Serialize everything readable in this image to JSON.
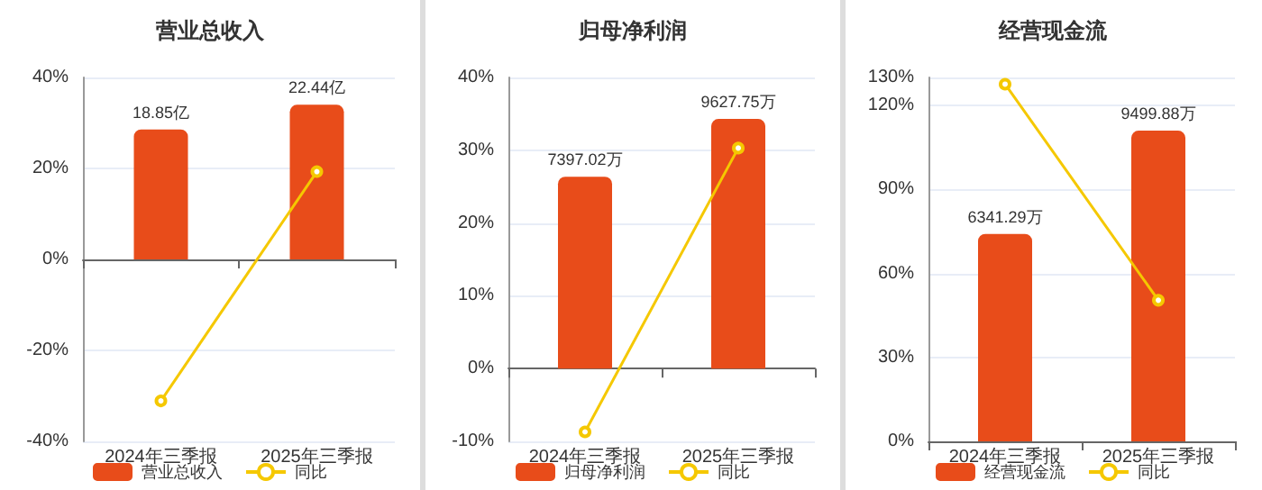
{
  "chart_data": [
    {
      "type": "bar",
      "title": "营业总收入",
      "categories": [
        "2024年三季报",
        "2025年三季报"
      ],
      "ylim": [
        -40,
        40
      ],
      "yticks": [
        {
          "value": -40,
          "label": "-40%"
        },
        {
          "value": -20,
          "label": "-20%"
        },
        {
          "value": 0,
          "label": "0%"
        },
        {
          "value": 20,
          "label": "20%"
        },
        {
          "value": 40,
          "label": "40%"
        }
      ],
      "y2lim": [
        -26.4,
        26.4
      ],
      "grid": "y",
      "legend": "bottom",
      "series": [
        {
          "name": "营业总收入",
          "color": "#e84c1a",
          "values": [
            18.85,
            22.44
          ],
          "axis": "y2",
          "value_labels": [
            "18.85亿",
            "22.44亿"
          ]
        },
        {
          "type": "line",
          "name": "同比",
          "color": "#f5c800",
          "values": [
            -31.1,
            19.3
          ],
          "marker": "circle"
        }
      ]
    },
    {
      "type": "bar",
      "title": "归母净利润",
      "categories": [
        "2024年三季报",
        "2025年三季报"
      ],
      "ylim": [
        -10,
        40
      ],
      "yticks": [
        {
          "value": -10,
          "label": "-10%"
        },
        {
          "value": 0,
          "label": "0%"
        },
        {
          "value": 10,
          "label": "10%"
        },
        {
          "value": 20,
          "label": "20%"
        },
        {
          "value": 30,
          "label": "30%"
        },
        {
          "value": 40,
          "label": "40%"
        }
      ],
      "y2lim": [
        -2807,
        11228
      ],
      "grid": "y",
      "legend": "bottom",
      "series": [
        {
          "name": "归母净利润",
          "color": "#e84c1a",
          "values": [
            7397.02,
            9627.75
          ],
          "axis": "y2",
          "value_labels": [
            "7397.02万",
            "9627.75万"
          ]
        },
        {
          "type": "line",
          "name": "同比",
          "color": "#f5c800",
          "values": [
            -8.7,
            30.3
          ],
          "marker": "circle"
        }
      ]
    },
    {
      "type": "bar",
      "title": "经营现金流",
      "categories": [
        "2024年三季报",
        "2025年三季报"
      ],
      "ylim": [
        0,
        130
      ],
      "yticks": [
        {
          "value": 0,
          "label": "0%"
        },
        {
          "value": 30,
          "label": "30%"
        },
        {
          "value": 60,
          "label": "60%"
        },
        {
          "value": 90,
          "label": "90%"
        },
        {
          "value": 120,
          "label": "120%"
        },
        {
          "value": 130,
          "label": "130%"
        }
      ],
      "y2lim": [
        0,
        11128
      ],
      "grid": "y",
      "legend": "bottom",
      "series": [
        {
          "name": "经营现金流",
          "color": "#e84c1a",
          "values": [
            6341.29,
            9499.88
          ],
          "axis": "y2",
          "value_labels": [
            "6341.29万",
            "9499.88万"
          ]
        },
        {
          "type": "line",
          "name": "同比",
          "color": "#f5c800",
          "values": [
            127.6,
            50.4
          ],
          "marker": "circle"
        }
      ]
    }
  ]
}
